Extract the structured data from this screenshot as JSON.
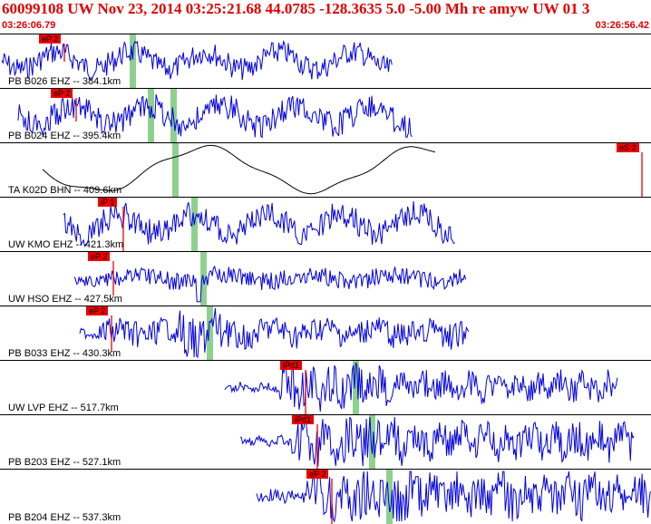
{
  "header": {
    "title": "60099108 UW Nov 23, 2014 03:25:21.68    44.0785 -128.3635  5.0 -5.00 Mh re amyw UW 01    3",
    "start_time": "03:26:06.79",
    "end_time": "03:26:56.42"
  },
  "colors": {
    "trace": "#0000dd",
    "trace_alt": "#000000",
    "pick": "#ee0000",
    "marker": "#8fd08f",
    "title": "#e00000"
  },
  "channels": [
    {
      "label": "PB B026 EHZ -- 384.1km",
      "pick": "eP 2"
    },
    {
      "label": "PB B024 EHZ -- 395.4km",
      "pick": "eP 2"
    },
    {
      "label": "TA K02D BHN -- 409.6km",
      "pick": "eS 2"
    },
    {
      "label": "UW KMO EHZ -- 421.3km",
      "pick": "iP 1"
    },
    {
      "label": "UW HSO EHZ -- 427.5km",
      "pick": "eP 2"
    },
    {
      "label": "PB B033 EHZ -- 430.3km",
      "pick": "eP 2"
    },
    {
      "label": "UW LVP EHZ -- 517.7km",
      "pick": "iPd1"
    },
    {
      "label": "PB B203 EHZ -- 527.1km",
      "pick": "iPd1"
    },
    {
      "label": "PB B204 EHZ -- 537.3km",
      "pick": "eP 2"
    }
  ]
}
